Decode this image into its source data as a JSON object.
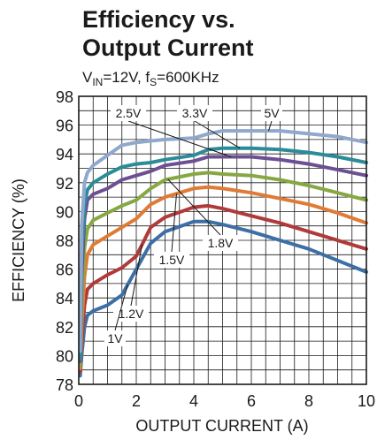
{
  "chart_data": {
    "type": "line",
    "title_lines": [
      "Efficiency vs.",
      "Output Current"
    ],
    "subtitle": {
      "vin_prefix": "V",
      "vin_sub": "IN",
      "vin_value": "=12V, f",
      "fs_sub": "S",
      "fs_value": "=600KHz"
    },
    "xlabel": "OUTPUT CURRENT (A)",
    "ylabel": "EFFICIENCY (%)",
    "xlim": [
      0,
      10
    ],
    "ylim": [
      78,
      98
    ],
    "x_ticks": [
      "0",
      "2",
      "4",
      "6",
      "8",
      "10"
    ],
    "y_ticks": [
      "78",
      "80",
      "82",
      "84",
      "86",
      "88",
      "90",
      "92",
      "94",
      "96",
      "98"
    ],
    "grid": true,
    "series": [
      {
        "name": "1V",
        "color": "#3d6fa6",
        "points": [
          [
            0.05,
            78.6
          ],
          [
            0.1,
            80.0
          ],
          [
            0.2,
            82.0
          ],
          [
            0.3,
            82.8
          ],
          [
            0.5,
            83.1
          ],
          [
            1.0,
            83.5
          ],
          [
            1.5,
            84.2
          ],
          [
            2.0,
            86.0
          ],
          [
            2.5,
            87.8
          ],
          [
            3.0,
            88.6
          ],
          [
            4.0,
            89.3
          ],
          [
            4.5,
            89.3
          ],
          [
            5.0,
            89.1
          ],
          [
            6.0,
            88.6
          ],
          [
            7.0,
            88.0
          ],
          [
            8.0,
            87.4
          ],
          [
            9.0,
            86.6
          ],
          [
            10.0,
            85.8
          ]
        ]
      },
      {
        "name": "1.2V",
        "color": "#b03a3a",
        "points": [
          [
            0.05,
            78.9
          ],
          [
            0.1,
            81.0
          ],
          [
            0.2,
            83.5
          ],
          [
            0.3,
            84.6
          ],
          [
            0.5,
            85.0
          ],
          [
            1.0,
            85.6
          ],
          [
            1.5,
            86.1
          ],
          [
            2.0,
            86.9
          ],
          [
            2.5,
            88.9
          ],
          [
            3.0,
            89.6
          ],
          [
            4.0,
            90.3
          ],
          [
            4.5,
            90.4
          ],
          [
            5.0,
            90.2
          ],
          [
            6.0,
            89.7
          ],
          [
            7.0,
            89.2
          ],
          [
            8.0,
            88.6
          ],
          [
            9.0,
            88.0
          ],
          [
            10.0,
            87.4
          ]
        ]
      },
      {
        "name": "1.5V",
        "color": "#e07b35",
        "points": [
          [
            0.05,
            79.1
          ],
          [
            0.1,
            82.0
          ],
          [
            0.2,
            85.5
          ],
          [
            0.3,
            87.0
          ],
          [
            0.5,
            87.7
          ],
          [
            1.0,
            88.3
          ],
          [
            1.5,
            88.9
          ],
          [
            2.0,
            89.5
          ],
          [
            2.5,
            90.5
          ],
          [
            3.0,
            91.0
          ],
          [
            4.0,
            91.6
          ],
          [
            4.5,
            91.7
          ],
          [
            5.0,
            91.6
          ],
          [
            6.0,
            91.3
          ],
          [
            7.0,
            90.9
          ],
          [
            8.0,
            90.5
          ],
          [
            9.0,
            89.9
          ],
          [
            10.0,
            89.2
          ]
        ]
      },
      {
        "name": "1.8V",
        "color": "#86a842",
        "points": [
          [
            0.05,
            79.3
          ],
          [
            0.1,
            83.5
          ],
          [
            0.2,
            87.5
          ],
          [
            0.3,
            88.8
          ],
          [
            0.5,
            89.4
          ],
          [
            1.0,
            89.9
          ],
          [
            1.5,
            90.4
          ],
          [
            2.0,
            90.8
          ],
          [
            2.5,
            91.6
          ],
          [
            3.0,
            92.2
          ],
          [
            4.0,
            92.6
          ],
          [
            4.5,
            92.7
          ],
          [
            5.0,
            92.6
          ],
          [
            6.0,
            92.5
          ],
          [
            7.0,
            92.2
          ],
          [
            8.0,
            91.8
          ],
          [
            9.0,
            91.3
          ],
          [
            10.0,
            90.8
          ]
        ]
      },
      {
        "name": "2.5V",
        "color": "#6d4f94",
        "points": [
          [
            0.05,
            79.6
          ],
          [
            0.1,
            85.5
          ],
          [
            0.2,
            89.5
          ],
          [
            0.3,
            90.8
          ],
          [
            0.5,
            91.2
          ],
          [
            1.0,
            91.6
          ],
          [
            1.5,
            92.2
          ],
          [
            2.0,
            92.5
          ],
          [
            2.5,
            92.8
          ],
          [
            3.0,
            93.2
          ],
          [
            4.0,
            93.5
          ],
          [
            4.5,
            93.8
          ],
          [
            5.0,
            93.8
          ],
          [
            6.0,
            93.8
          ],
          [
            7.0,
            93.6
          ],
          [
            8.0,
            93.3
          ],
          [
            9.0,
            92.9
          ],
          [
            10.0,
            92.5
          ]
        ]
      },
      {
        "name": "3.3V",
        "color": "#2b8c99",
        "points": [
          [
            0.05,
            79.8
          ],
          [
            0.1,
            87.0
          ],
          [
            0.2,
            90.5
          ],
          [
            0.3,
            91.5
          ],
          [
            0.5,
            92.0
          ],
          [
            1.0,
            92.6
          ],
          [
            1.5,
            93.1
          ],
          [
            2.0,
            93.3
          ],
          [
            2.5,
            93.4
          ],
          [
            3.0,
            93.6
          ],
          [
            4.0,
            93.9
          ],
          [
            4.5,
            94.3
          ],
          [
            5.0,
            94.4
          ],
          [
            6.0,
            94.4
          ],
          [
            7.0,
            94.3
          ],
          [
            8.0,
            94.1
          ],
          [
            9.0,
            93.8
          ],
          [
            10.0,
            93.4
          ]
        ]
      },
      {
        "name": "5V",
        "color": "#8fa8cc",
        "points": [
          [
            0.05,
            80.3
          ],
          [
            0.1,
            89.0
          ],
          [
            0.2,
            92.0
          ],
          [
            0.3,
            92.7
          ],
          [
            0.5,
            93.2
          ],
          [
            1.0,
            93.9
          ],
          [
            1.5,
            94.6
          ],
          [
            2.0,
            94.8
          ],
          [
            2.5,
            94.9
          ],
          [
            3.0,
            95.0
          ],
          [
            4.0,
            95.1
          ],
          [
            4.5,
            95.4
          ],
          [
            5.0,
            95.6
          ],
          [
            6.0,
            95.6
          ],
          [
            7.0,
            95.6
          ],
          [
            8.0,
            95.4
          ],
          [
            9.0,
            95.2
          ],
          [
            10.0,
            94.8
          ]
        ]
      }
    ],
    "annotations": [
      {
        "text": "2.5V",
        "series": "2.5V"
      },
      {
        "text": "3.3V",
        "series": "3.3V"
      },
      {
        "text": "5V",
        "series": "5V"
      },
      {
        "text": "1.8V",
        "series": "1.8V"
      },
      {
        "text": "1.5V",
        "series": "1.5V"
      },
      {
        "text": "1.2V",
        "series": "1.2V"
      },
      {
        "text": "1V",
        "series": "1V"
      }
    ]
  }
}
